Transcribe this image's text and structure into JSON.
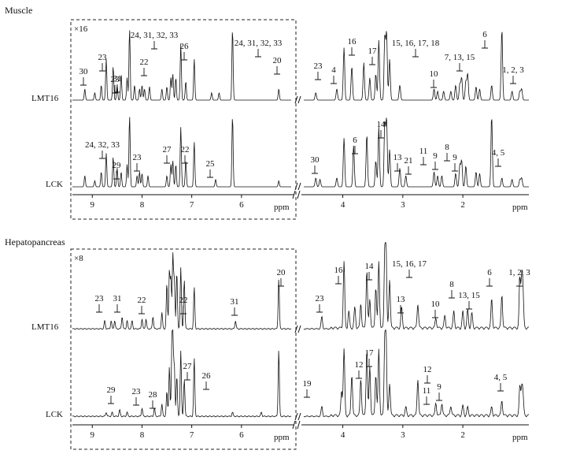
{
  "chart_data": [
    {
      "type": "line",
      "title": "Muscle",
      "magnification": "×16",
      "xlabel": "ppm",
      "series": [
        {
          "name": "LMT16",
          "peaks_left": [
            [
              9.15,
              0.15
            ],
            [
              8.95,
              0.1
            ],
            [
              8.82,
              0.2
            ],
            [
              8.72,
              0.55
            ],
            [
              8.58,
              0.45
            ],
            [
              8.5,
              0.2
            ],
            [
              8.42,
              0.35
            ],
            [
              8.3,
              0.3
            ],
            [
              8.25,
              0.95
            ],
            [
              8.15,
              0.2
            ],
            [
              8.05,
              0.15
            ],
            [
              8.0,
              0.2
            ],
            [
              7.95,
              0.15
            ],
            [
              7.85,
              0.18
            ],
            [
              7.6,
              0.15
            ],
            [
              7.5,
              0.18
            ],
            [
              7.42,
              0.3
            ],
            [
              7.38,
              0.35
            ],
            [
              7.32,
              0.3
            ],
            [
              7.22,
              0.75
            ],
            [
              7.12,
              0.25
            ],
            [
              6.95,
              0.55
            ],
            [
              6.6,
              0.1
            ],
            [
              6.45,
              0.1
            ],
            [
              6.18,
              0.95
            ],
            [
              5.25,
              0.15
            ]
          ],
          "peaks_right": [
            [
              4.45,
              0.1
            ],
            [
              4.1,
              0.15
            ],
            [
              3.98,
              0.7
            ],
            [
              3.85,
              0.45
            ],
            [
              3.65,
              0.5
            ],
            [
              3.55,
              0.3
            ],
            [
              3.45,
              0.35
            ],
            [
              3.4,
              0.8
            ],
            [
              3.3,
              0.85
            ],
            [
              3.27,
              0.9
            ],
            [
              3.22,
              0.55
            ],
            [
              3.05,
              0.2
            ],
            [
              2.48,
              0.15
            ],
            [
              2.42,
              0.12
            ],
            [
              2.32,
              0.12
            ],
            [
              2.2,
              0.12
            ],
            [
              2.12,
              0.2
            ],
            [
              2.05,
              0.22
            ],
            [
              2.02,
              0.3
            ],
            [
              1.95,
              0.25
            ],
            [
              1.92,
              0.35
            ],
            [
              1.78,
              0.18
            ],
            [
              1.72,
              0.15
            ],
            [
              1.52,
              0.2
            ],
            [
              1.35,
              0.95
            ],
            [
              1.18,
              0.12
            ],
            [
              1.05,
              0.12
            ],
            [
              1.02,
              0.15
            ]
          ]
        },
        {
          "name": "LCK",
          "peaks_left": [
            [
              9.15,
              0.15
            ],
            [
              8.95,
              0.08
            ],
            [
              8.82,
              0.2
            ],
            [
              8.72,
              0.45
            ],
            [
              8.58,
              0.4
            ],
            [
              8.5,
              0.25
            ],
            [
              8.42,
              0.2
            ],
            [
              8.3,
              0.3
            ],
            [
              8.25,
              0.95
            ],
            [
              8.1,
              0.15
            ],
            [
              8.05,
              0.2
            ],
            [
              8.0,
              0.18
            ],
            [
              7.88,
              0.15
            ],
            [
              7.5,
              0.15
            ],
            [
              7.42,
              0.3
            ],
            [
              7.38,
              0.35
            ],
            [
              7.32,
              0.3
            ],
            [
              7.22,
              0.8
            ],
            [
              7.12,
              0.35
            ],
            [
              6.95,
              0.6
            ],
            [
              6.52,
              0.1
            ],
            [
              6.18,
              0.95
            ],
            [
              5.25,
              0.08
            ]
          ],
          "peaks_right": [
            [
              4.45,
              0.12
            ],
            [
              4.38,
              0.1
            ],
            [
              4.1,
              0.12
            ],
            [
              3.98,
              0.65
            ],
            [
              3.82,
              0.55
            ],
            [
              3.6,
              0.7
            ],
            [
              3.45,
              0.35
            ],
            [
              3.4,
              0.8
            ],
            [
              3.3,
              0.85
            ],
            [
              3.27,
              0.9
            ],
            [
              3.22,
              0.5
            ],
            [
              3.05,
              0.25
            ],
            [
              2.95,
              0.15
            ],
            [
              2.48,
              0.2
            ],
            [
              2.42,
              0.15
            ],
            [
              2.35,
              0.15
            ],
            [
              2.12,
              0.18
            ],
            [
              2.05,
              0.3
            ],
            [
              2.02,
              0.35
            ],
            [
              1.95,
              0.28
            ],
            [
              1.78,
              0.2
            ],
            [
              1.72,
              0.18
            ],
            [
              1.52,
              0.95
            ],
            [
              1.35,
              0.12
            ],
            [
              1.18,
              0.1
            ],
            [
              1.05,
              0.1
            ],
            [
              1.02,
              0.12
            ]
          ]
        }
      ],
      "x_ticks": [
        9,
        8,
        7,
        6,
        4,
        3,
        2
      ],
      "annotations": {
        "LMT16": [
          "30",
          "23",
          "23",
          "31",
          "24, 31, 32, 33",
          "22",
          "26",
          "24, 31, 32, 33",
          "20",
          "23",
          "4",
          "16",
          "17",
          "15, 16, 17, 18",
          "10",
          "7, 13, 15",
          "6",
          "1, 2, 3"
        ],
        "LCK": [
          "24, 32, 33",
          "29",
          "23",
          "27",
          "22",
          "25",
          "30",
          "6",
          "14",
          "13",
          "21",
          "11",
          "9",
          "8",
          "9",
          "4, 5"
        ]
      }
    },
    {
      "type": "line",
      "title": "Hepatopancreas",
      "magnification": "×8",
      "xlabel": "ppm",
      "series": [
        {
          "name": "LMT16",
          "peaks_left": [
            [
              8.75,
              0.1
            ],
            [
              8.62,
              0.1
            ],
            [
              8.55,
              0.1
            ],
            [
              8.4,
              0.15
            ],
            [
              8.3,
              0.1
            ],
            [
              8.2,
              0.1
            ],
            [
              8.0,
              0.12
            ],
            [
              7.92,
              0.12
            ],
            [
              7.78,
              0.15
            ],
            [
              7.6,
              0.2
            ],
            [
              7.5,
              0.55
            ],
            [
              7.45,
              0.7
            ],
            [
              7.42,
              0.6
            ],
            [
              7.38,
              0.9
            ],
            [
              7.35,
              0.6
            ],
            [
              7.3,
              0.7
            ],
            [
              7.22,
              0.75
            ],
            [
              7.15,
              0.6
            ],
            [
              6.95,
              0.5
            ],
            [
              6.12,
              0.1
            ],
            [
              5.25,
              0.6
            ]
          ],
          "peaks_right": [
            [
              4.35,
              0.15
            ],
            [
              3.98,
              0.8
            ],
            [
              3.9,
              0.2
            ],
            [
              3.8,
              0.25
            ],
            [
              3.7,
              0.3
            ],
            [
              3.6,
              0.7
            ],
            [
              3.55,
              0.35
            ],
            [
              3.45,
              0.5
            ],
            [
              3.4,
              0.8
            ],
            [
              3.3,
              0.85
            ],
            [
              3.28,
              0.9
            ],
            [
              3.22,
              0.6
            ],
            [
              3.02,
              0.25
            ],
            [
              2.75,
              0.3
            ],
            [
              2.45,
              0.12
            ],
            [
              2.3,
              0.15
            ],
            [
              2.15,
              0.2
            ],
            [
              2.0,
              0.2
            ],
            [
              1.92,
              0.22
            ],
            [
              1.85,
              0.18
            ],
            [
              1.52,
              0.35
            ],
            [
              1.35,
              0.4
            ],
            [
              1.05,
              0.6
            ],
            [
              1.02,
              0.55
            ],
            [
              1.0,
              0.45
            ]
          ]
        },
        {
          "name": "LCK",
          "peaks_left": [
            [
              8.72,
              0.05
            ],
            [
              8.6,
              0.05
            ],
            [
              8.45,
              0.08
            ],
            [
              8.3,
              0.05
            ],
            [
              8.0,
              0.1
            ],
            [
              7.75,
              0.1
            ],
            [
              7.6,
              0.15
            ],
            [
              7.5,
              0.3
            ],
            [
              7.45,
              0.6
            ],
            [
              7.4,
              0.75
            ],
            [
              7.38,
              0.95
            ],
            [
              7.35,
              0.6
            ],
            [
              7.3,
              0.5
            ],
            [
              7.22,
              0.8
            ],
            [
              7.15,
              0.45
            ],
            [
              6.95,
              0.7
            ],
            [
              6.18,
              0.05
            ],
            [
              5.6,
              0.05
            ],
            [
              5.25,
              0.8
            ]
          ],
          "peaks_right": [
            [
              4.35,
              0.12
            ],
            [
              4.02,
              0.3
            ],
            [
              3.98,
              0.8
            ],
            [
              3.85,
              0.5
            ],
            [
              3.7,
              0.45
            ],
            [
              3.6,
              0.8
            ],
            [
              3.55,
              0.6
            ],
            [
              3.45,
              0.5
            ],
            [
              3.4,
              0.8
            ],
            [
              3.3,
              0.85
            ],
            [
              3.28,
              0.9
            ],
            [
              3.22,
              0.4
            ],
            [
              2.95,
              0.1
            ],
            [
              2.75,
              0.45
            ],
            [
              2.45,
              0.15
            ],
            [
              2.35,
              0.15
            ],
            [
              2.2,
              0.12
            ],
            [
              2.0,
              0.12
            ],
            [
              1.92,
              0.1
            ],
            [
              1.52,
              0.1
            ],
            [
              1.35,
              0.18
            ],
            [
              1.05,
              0.35
            ],
            [
              1.02,
              0.3
            ],
            [
              1.0,
              0.25
            ]
          ]
        }
      ],
      "x_ticks": [
        9,
        8,
        7,
        6,
        4,
        3,
        2
      ],
      "annotations": {
        "LMT16": [
          "23",
          "31",
          "22",
          "22",
          "31",
          "20",
          "23",
          "16",
          "14",
          "15, 16, 17",
          "13",
          "8",
          "10",
          "13, 15",
          "6",
          "1, 2, 3"
        ],
        "LCK": [
          "29",
          "23",
          "28",
          "27",
          "26",
          "19",
          "12",
          "17",
          "12",
          "11",
          "9",
          "4, 5"
        ]
      }
    }
  ]
}
